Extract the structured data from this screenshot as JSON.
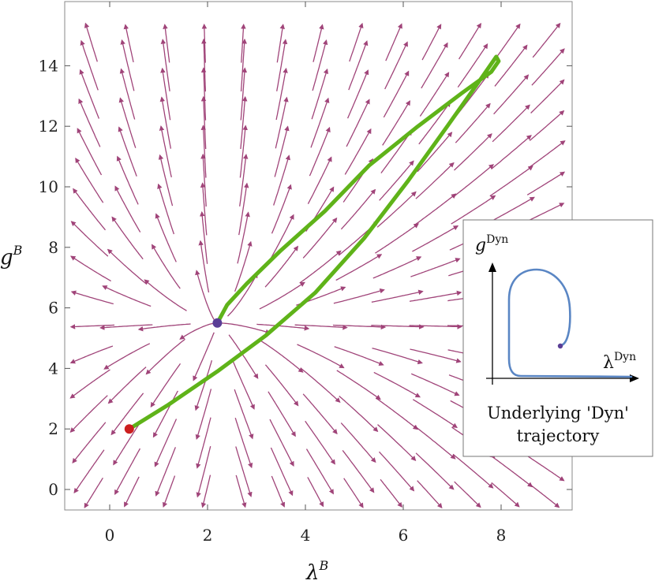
{
  "chart_data": {
    "type": "streamplot",
    "xlabel": {
      "base": "λ",
      "sup": "B"
    },
    "ylabel": {
      "base": "g",
      "sup": "B"
    },
    "xlim": [
      -0.9,
      9.6
    ],
    "ylim": [
      -0.7,
      15.5
    ],
    "xticks": [
      0,
      2,
      4,
      6,
      8
    ],
    "yticks": [
      0,
      2,
      4,
      6,
      8,
      10,
      12,
      14
    ],
    "fixed_points": [
      {
        "x": 2.2,
        "y": 5.5,
        "color": "#5a3e96"
      },
      {
        "x": 0.4,
        "y": 2.0,
        "color": "#cc1f1f"
      }
    ],
    "trajectory": {
      "color": "#5fb319",
      "points": [
        [
          0.4,
          2.0
        ],
        [
          1.2,
          2.8
        ],
        [
          2.2,
          3.9
        ],
        [
          3.2,
          5.1
        ],
        [
          4.2,
          6.5
        ],
        [
          5.2,
          8.3
        ],
        [
          6.1,
          10.2
        ],
        [
          6.9,
          12.0
        ],
        [
          7.6,
          13.6
        ],
        [
          7.9,
          14.3
        ],
        [
          7.95,
          14.15
        ],
        [
          7.8,
          13.8
        ],
        [
          7.2,
          13.1
        ],
        [
          6.3,
          12.0
        ],
        [
          5.3,
          10.7
        ],
        [
          4.4,
          9.2
        ],
        [
          3.5,
          7.9
        ],
        [
          2.8,
          6.8
        ],
        [
          2.4,
          6.1
        ],
        [
          2.2,
          5.5
        ]
      ]
    },
    "stream_color": "#9b3a72",
    "inset": {
      "xlabel": {
        "base": "λ",
        "sup": "Dyn"
      },
      "ylabel": {
        "base": "g",
        "sup": "Dyn"
      },
      "caption_line1": "Underlying 'Dyn'",
      "caption_line2": "trajectory",
      "curve_color": "#5a86c4",
      "end_point_color": "#5a3e96"
    }
  }
}
